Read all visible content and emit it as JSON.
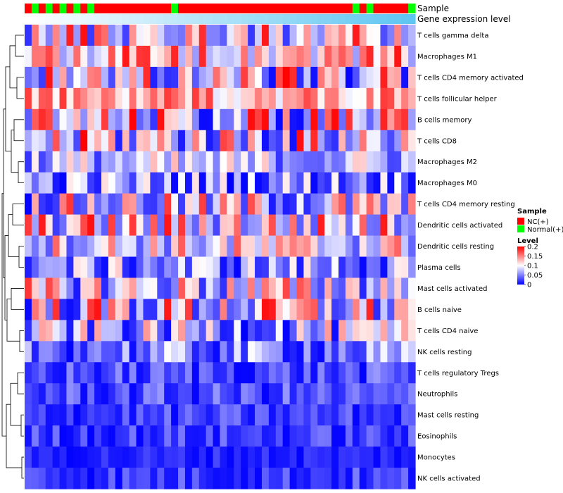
{
  "chart_data": {
    "type": "heatmap",
    "title": "",
    "annotations": {
      "track_labels": [
        "Sample",
        "Gene expression level"
      ],
      "sample_groups": [
        "NC",
        "Normal",
        "NC",
        "Normal",
        "NC",
        "Normal",
        "NC",
        "Normal",
        "NC",
        "Normal",
        "NC",
        "NC",
        "NC",
        "NC",
        "NC",
        "NC",
        "NC",
        "NC",
        "NC",
        "NC",
        "NC",
        "Normal",
        "NC",
        "NC",
        "NC",
        "NC",
        "NC",
        "NC",
        "NC",
        "NC",
        "NC",
        "NC",
        "NC",
        "NC",
        "NC",
        "NC",
        "NC",
        "NC",
        "NC",
        "NC",
        "NC",
        "NC",
        "NC",
        "NC",
        "NC",
        "NC",
        "NC",
        "Normal",
        "NC",
        "Normal",
        "NC",
        "NC",
        "NC",
        "NC",
        "NC",
        "Normal"
      ],
      "sample_group_colors": {
        "NC": "#ff0000",
        "Normal": "#00ff00"
      },
      "expression_gradient": [
        "#ffffff",
        "#5ec6f2"
      ]
    },
    "rows": [
      "T cells gamma delta",
      "Macrophages M1",
      "T cells CD4 memory activated",
      "T cells follicular helper",
      "B cells memory",
      "T cells CD8",
      "Macrophages M2",
      "Macrophages M0",
      "T cells CD4 memory resting",
      "Dendritic cells activated",
      "Dendritic cells resting",
      "Plasma cells",
      "Mast cells activated",
      "B cells naive",
      "T cells CD4 naive",
      "NK cells resting",
      "T cells regulatory  Tregs",
      "Neutrophils",
      "Mast cells resting",
      "Eosinophils",
      "Monocytes",
      "NK cells activated"
    ],
    "row_value_range": [
      [
        0.02,
        0.2
      ],
      [
        0.06,
        0.2
      ],
      [
        0.0,
        0.2
      ],
      [
        0.09,
        0.18
      ],
      [
        0.0,
        0.2
      ],
      [
        0.0,
        0.2
      ],
      [
        0.02,
        0.13
      ],
      [
        0.0,
        0.12
      ],
      [
        0.0,
        0.18
      ],
      [
        0.02,
        0.2
      ],
      [
        0.03,
        0.17
      ],
      [
        0.0,
        0.12
      ],
      [
        0.01,
        0.18
      ],
      [
        0.0,
        0.2
      ],
      [
        0.0,
        0.14
      ],
      [
        0.0,
        0.1
      ],
      [
        0.0,
        0.06
      ],
      [
        0.0,
        0.06
      ],
      [
        0.0,
        0.05
      ],
      [
        0.0,
        0.05
      ],
      [
        0.0,
        0.03
      ],
      [
        0.0,
        0.05
      ]
    ],
    "n_samples": 56,
    "colorscale": {
      "stops": [
        [
          0,
          "#0000ff"
        ],
        [
          0.1,
          "#ffffff"
        ],
        [
          0.2,
          "#ff0000"
        ]
      ]
    },
    "legend": {
      "position": "right",
      "sample_title": "Sample",
      "sample_entries": [
        {
          "label": "NC(+)",
          "color": "#ff0000"
        },
        {
          "label": "Normal(+)",
          "color": "#00ff00"
        }
      ],
      "level_title": "Level",
      "level_ticks": [
        "0.2",
        "0.15",
        "0.1",
        "0.05",
        "0"
      ]
    }
  }
}
